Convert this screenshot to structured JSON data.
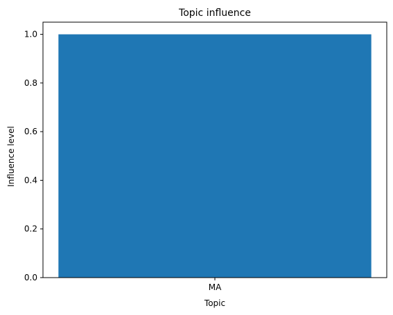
{
  "chart_data": {
    "type": "bar",
    "title": "Topic influence",
    "xlabel": "Topic",
    "ylabel": "Influence level",
    "categories": [
      "MA"
    ],
    "values": [
      1.0
    ],
    "ylim": [
      0,
      1.05
    ],
    "yticks": [
      0.0,
      0.2,
      0.4,
      0.6,
      0.8,
      1.0
    ],
    "ytick_labels": [
      "0.0",
      "0.2",
      "0.4",
      "0.6",
      "0.8",
      "1.0"
    ],
    "grid": false,
    "bar_color": "#1f77b4"
  }
}
